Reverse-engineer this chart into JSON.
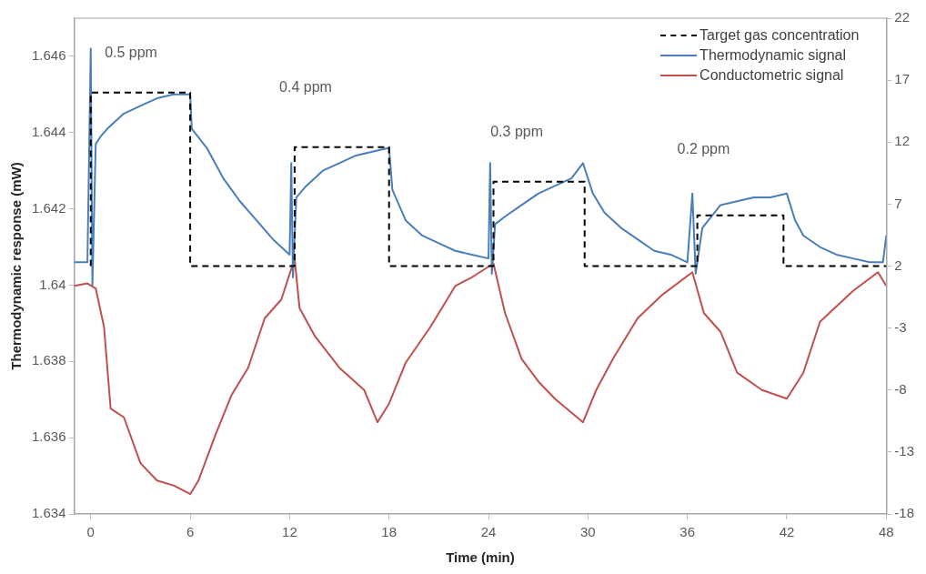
{
  "chart_data": {
    "type": "line",
    "xlabel": "Time (min)",
    "ylabel": "Thermodynamic response (mW)",
    "xlim": [
      -1,
      48
    ],
    "xticks": [
      0,
      6,
      12,
      18,
      24,
      30,
      36,
      42,
      48
    ],
    "ylim": [
      1.634,
      1.647
    ],
    "yticks": [
      {
        "value": 1.634,
        "label": "1.634"
      },
      {
        "value": 1.636,
        "label": "1.636"
      },
      {
        "value": 1.638,
        "label": "1.638"
      },
      {
        "value": 1.64,
        "label": "1.64"
      },
      {
        "value": 1.642,
        "label": "1.642"
      },
      {
        "value": 1.644,
        "label": "1.644"
      },
      {
        "value": 1.646,
        "label": "1.646"
      }
    ],
    "y2lim": [
      -18,
      22
    ],
    "y2ticks": [
      -18,
      -13,
      -8,
      -3,
      2,
      7,
      12,
      17,
      22
    ],
    "grid": false,
    "legend": "top right",
    "marker": "none",
    "series": [
      {
        "name": "Target gas concentration",
        "color": "#000000",
        "axis": "y2",
        "line_style": "dashed",
        "x": [
          0,
          0,
          6,
          6,
          12.3,
          12.3,
          18,
          18,
          24.3,
          24.3,
          29.8,
          29.8,
          36.6,
          36.6,
          41.8,
          41.8,
          48
        ],
        "values": [
          2,
          16,
          16,
          2,
          2,
          11.6,
          11.6,
          2,
          2,
          8.8,
          8.8,
          2,
          2,
          6.1,
          6.1,
          2,
          2
        ]
      },
      {
        "name": "Thermodynamic signal",
        "color": "#4a7ebb",
        "line_style": "solid",
        "x": [
          -1,
          -0.2,
          0,
          0.1,
          0.3,
          0.6,
          1,
          2,
          3,
          4,
          5,
          6,
          6.1,
          7,
          8,
          9,
          10,
          11,
          12,
          12.1,
          12.2,
          12.4,
          13,
          14,
          15,
          16,
          17,
          18,
          18.2,
          19,
          20,
          21,
          22,
          23,
          24,
          24.1,
          24.2,
          24.4,
          25,
          26,
          27,
          28,
          29,
          29.7,
          30.3,
          31,
          32,
          33,
          34,
          35,
          36,
          36.3,
          36.5,
          36.9,
          38,
          39,
          40,
          41,
          42,
          42.5,
          43,
          44,
          45,
          46,
          47,
          47.8,
          48
        ],
        "values": [
          1.6406,
          1.6406,
          1.6462,
          1.64,
          1.6437,
          1.6439,
          1.6441,
          1.6445,
          1.6447,
          1.6449,
          1.645,
          1.645,
          1.6441,
          1.6436,
          1.6428,
          1.6422,
          1.6417,
          1.6412,
          1.6408,
          1.6432,
          1.6402,
          1.6423,
          1.6426,
          1.643,
          1.6432,
          1.6434,
          1.6435,
          1.6436,
          1.6425,
          1.6417,
          1.6413,
          1.6411,
          1.6409,
          1.6408,
          1.6407,
          1.6432,
          1.6403,
          1.6416,
          1.6418,
          1.6421,
          1.6424,
          1.6426,
          1.6428,
          1.6432,
          1.6424,
          1.6419,
          1.6415,
          1.6412,
          1.6409,
          1.6408,
          1.6406,
          1.6424,
          1.6403,
          1.6415,
          1.6421,
          1.6422,
          1.6423,
          1.6423,
          1.6424,
          1.6417,
          1.6413,
          1.641,
          1.6408,
          1.6407,
          1.6406,
          1.6406,
          1.6413
        ]
      },
      {
        "name": "Conductometric signal",
        "color": "#c0504d",
        "axis": "y2",
        "line_style": "solid",
        "x": [
          -1,
          -0.2,
          0.3,
          0.8,
          1.2,
          2,
          3,
          4,
          5,
          6,
          6.5,
          7.5,
          8.5,
          9.5,
          10.5,
          11.5,
          12.3,
          12.6,
          13.5,
          15,
          16.5,
          17.3,
          18,
          19,
          20.5,
          22,
          23,
          24.3,
          25,
          26,
          27,
          28,
          29.7,
          30.5,
          31.5,
          33,
          34.5,
          36.3,
          37,
          38,
          39,
          40.5,
          42,
          43,
          44,
          46,
          47.5,
          48
        ],
        "values": [
          0.4,
          0.6,
          0.2,
          -2.9,
          -9.5,
          -10.2,
          -13.9,
          -15.3,
          -15.7,
          -16.4,
          -15.3,
          -11.7,
          -8.4,
          -6.2,
          -2.2,
          -0.7,
          2.6,
          -1.4,
          -3.6,
          -6.2,
          -8,
          -10.6,
          -9.1,
          -5.8,
          -2.9,
          0.4,
          1.1,
          2.2,
          -1.8,
          -5.5,
          -7.3,
          -8.7,
          -10.6,
          -8,
          -5.5,
          -2.2,
          -0.3,
          1.5,
          -1.8,
          -3.3,
          -6.6,
          -8,
          -8.7,
          -6.6,
          -2.5,
          0,
          1.5,
          0.4
        ]
      }
    ],
    "annotations": [
      "0.5 ppm",
      "0.4 ppm",
      "0.3 ppm",
      "0.2 ppm"
    ]
  }
}
